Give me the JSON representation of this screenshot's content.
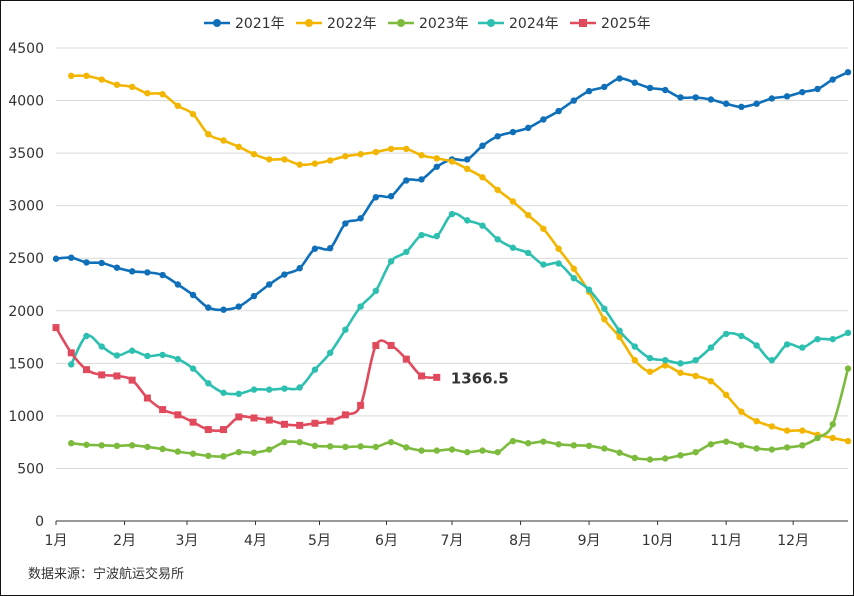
{
  "chart_data": {
    "type": "line",
    "title": "",
    "xlabel": "",
    "ylabel": "",
    "ylim": [
      0,
      4500
    ],
    "yticks": [
      0,
      500,
      1000,
      1500,
      2000,
      2500,
      3000,
      3500,
      4000,
      4500
    ],
    "xticks": [
      {
        "label": "1月",
        "week": 1
      },
      {
        "label": "2月",
        "week": 5.5
      },
      {
        "label": "3月",
        "week": 9.6
      },
      {
        "label": "4月",
        "week": 14.1
      },
      {
        "label": "5月",
        "week": 18.3
      },
      {
        "label": "6月",
        "week": 22.7
      },
      {
        "label": "7月",
        "week": 27
      },
      {
        "label": "8月",
        "week": 31.5
      },
      {
        "label": "9月",
        "week": 36
      },
      {
        "label": "10月",
        "week": 40.5
      },
      {
        "label": "11月",
        "week": 45
      },
      {
        "label": "12月",
        "week": 49.4
      }
    ],
    "xrange": [
      1,
      53
    ],
    "legend_position": "top",
    "series": [
      {
        "name": "2021年",
        "color": "#0f6fb8",
        "marker": "circle",
        "start": 1,
        "values": [
          2495,
          2505,
          2460,
          2455,
          2410,
          2375,
          2365,
          2340,
          2250,
          2150,
          2030,
          2010,
          2040,
          2140,
          2250,
          2345,
          2405,
          2590,
          2595,
          2830,
          2880,
          3080,
          3090,
          3240,
          3250,
          3370,
          3440,
          3440,
          3570,
          3660,
          3700,
          3740,
          3820,
          3900,
          4000,
          4090,
          4130,
          4210,
          4170,
          4120,
          4100,
          4030,
          4030,
          4010,
          3970,
          3940,
          3970,
          4020,
          4040,
          4080,
          4110,
          4200,
          4270
        ]
      },
      {
        "name": "2022年",
        "color": "#f2b600",
        "marker": "circle",
        "start": 2,
        "values": [
          4235,
          4235,
          4200,
          4150,
          4130,
          4070,
          4060,
          3950,
          3870,
          3680,
          3620,
          3560,
          3490,
          3440,
          3440,
          3390,
          3400,
          3430,
          3470,
          3490,
          3510,
          3540,
          3540,
          3480,
          3450,
          3420,
          3350,
          3270,
          3150,
          3040,
          2910,
          2780,
          2590,
          2400,
          2180,
          1920,
          1750,
          1530,
          1420,
          1480,
          1410,
          1380,
          1330,
          1200,
          1040,
          950,
          900,
          860,
          860,
          820,
          790,
          760
        ]
      },
      {
        "name": "2023年",
        "color": "#7cbb3d",
        "marker": "circle",
        "start": 2,
        "values": [
          740,
          725,
          720,
          715,
          720,
          705,
          685,
          660,
          640,
          620,
          615,
          655,
          650,
          680,
          750,
          750,
          715,
          710,
          705,
          710,
          705,
          750,
          700,
          670,
          670,
          680,
          655,
          670,
          655,
          760,
          740,
          755,
          730,
          720,
          715,
          690,
          650,
          600,
          585,
          595,
          625,
          655,
          730,
          755,
          720,
          690,
          680,
          700,
          720,
          790,
          920,
          1450
        ]
      },
      {
        "name": "2024年",
        "color": "#2dbfb0",
        "marker": "circle",
        "start": 2,
        "values": [
          1490,
          1760,
          1660,
          1575,
          1620,
          1570,
          1580,
          1540,
          1450,
          1310,
          1220,
          1210,
          1250,
          1250,
          1260,
          1270,
          1440,
          1600,
          1820,
          2040,
          2190,
          2470,
          2560,
          2720,
          2710,
          2920,
          2860,
          2810,
          2680,
          2600,
          2550,
          2440,
          2450,
          2310,
          2200,
          2020,
          1810,
          1660,
          1550,
          1530,
          1500,
          1530,
          1650,
          1780,
          1760,
          1670,
          1530,
          1680,
          1650,
          1730,
          1730,
          1790
        ]
      },
      {
        "name": "2025年",
        "color": "#e04a5c",
        "marker": "square",
        "start": 1,
        "values": [
          1840,
          1600,
          1440,
          1390,
          1380,
          1340,
          1170,
          1060,
          1010,
          940,
          870,
          870,
          990,
          980,
          960,
          920,
          910,
          930,
          950,
          1010,
          1100,
          1670,
          1670,
          1540,
          1380,
          1366.5
        ]
      }
    ],
    "annotation": {
      "text": "1366.5",
      "series": "2025年"
    }
  },
  "footer": {
    "source": "数据来源：宁波航运交易所"
  }
}
